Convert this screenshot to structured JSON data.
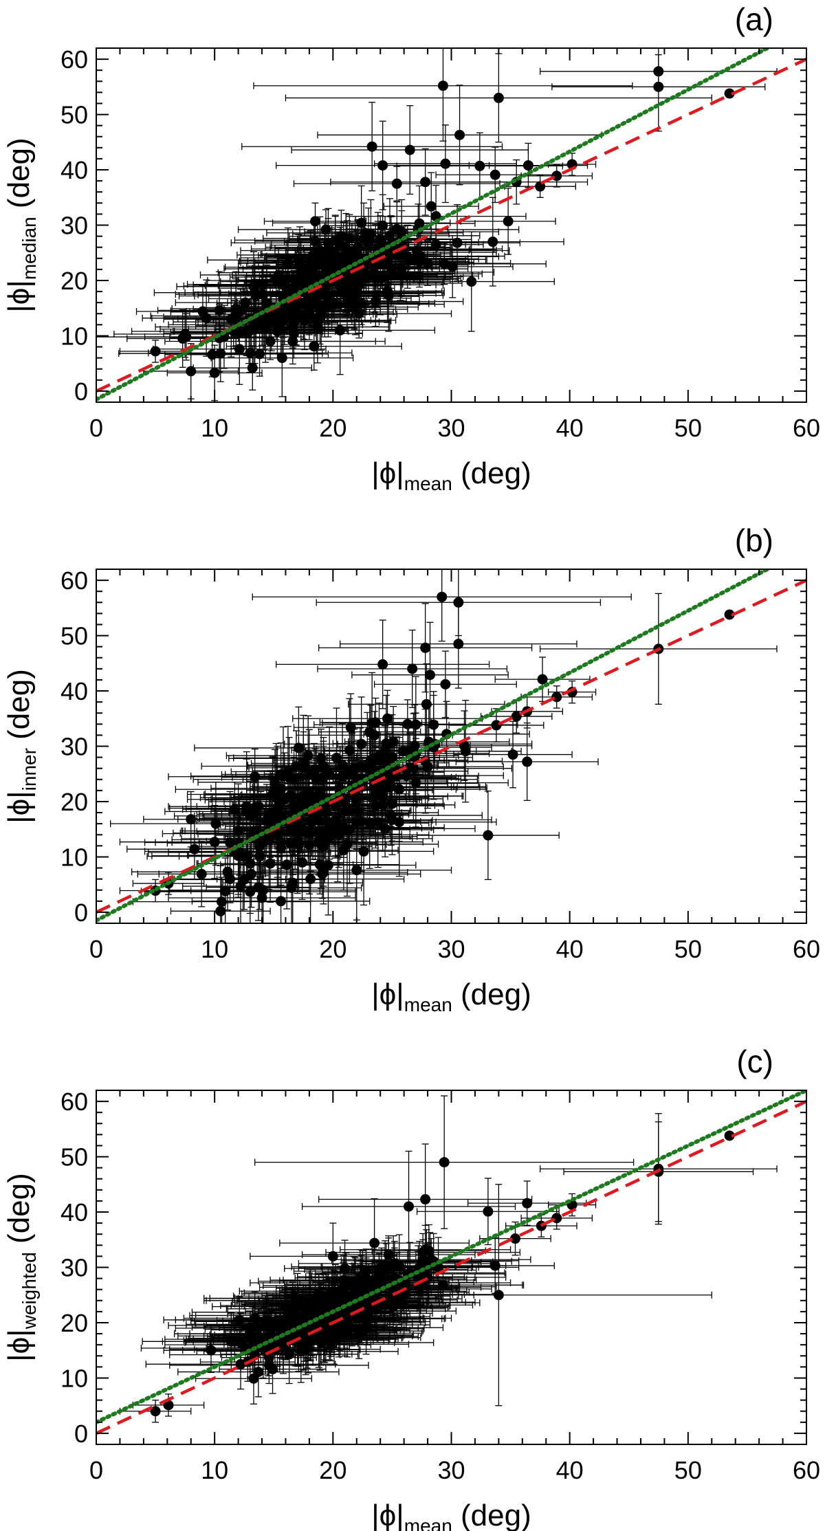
{
  "chart_data": [
    {
      "panel": "(a)",
      "type": "scatter",
      "xlabel": {
        "symbol": "|ϕ|",
        "sub": "mean",
        "unit": "(deg)"
      },
      "ylabel": {
        "symbol": "|ϕ|",
        "sub": "median",
        "unit": "(deg)"
      },
      "xlim": [
        0,
        60
      ],
      "ylim": [
        -2,
        62
      ],
      "xticks": [
        0,
        10,
        20,
        30,
        40,
        50,
        60
      ],
      "yticks": [
        0,
        10,
        20,
        30,
        40,
        50,
        60
      ],
      "lines": [
        {
          "name": "one-to-one",
          "style": "dashed",
          "color": "#e0191e",
          "slope": 1.0,
          "intercept": 0
        },
        {
          "name": "fit",
          "style": "dotted",
          "color": "#1e7a1e",
          "slope": 1.12,
          "intercept": -1.5
        }
      ],
      "points": [
        {
          "x": 47.5,
          "y": 57.8,
          "xerr": 10,
          "yerr": 3
        },
        {
          "x": 47.5,
          "y": 55.0,
          "xerr": 9,
          "yerr": 8
        },
        {
          "x": 53.5,
          "y": 53.8,
          "xerr": 0,
          "yerr": 0
        },
        {
          "x": 29.3,
          "y": 55.2,
          "xerr": 16,
          "yerr": 10
        },
        {
          "x": 34.0,
          "y": 53.0,
          "xerr": 18,
          "yerr": 8
        },
        {
          "x": 30.7,
          "y": 46.3,
          "xerr": 12,
          "yerr": 9
        },
        {
          "x": 23.3,
          "y": 44.2,
          "xerr": 11,
          "yerr": 8
        },
        {
          "x": 26.5,
          "y": 43.6,
          "xerr": 10,
          "yerr": 8
        },
        {
          "x": 40.2,
          "y": 41.0,
          "xerr": 2,
          "yerr": 2
        },
        {
          "x": 38.9,
          "y": 38.9,
          "xerr": 3,
          "yerr": 2
        },
        {
          "x": 37.5,
          "y": 37.0,
          "xerr": 3,
          "yerr": 2
        },
        {
          "x": 36.5,
          "y": 40.8,
          "xerr": 5,
          "yerr": 4
        },
        {
          "x": 32.4,
          "y": 40.7,
          "xerr": 7,
          "yerr": 6
        },
        {
          "x": 29.5,
          "y": 41.1,
          "xerr": 6,
          "yerr": 7
        },
        {
          "x": 27.8,
          "y": 37.8,
          "xerr": 8,
          "yerr": 6
        },
        {
          "x": 24.2,
          "y": 40.8,
          "xerr": 9,
          "yerr": 8
        },
        {
          "x": 33.7,
          "y": 39.1,
          "xerr": 5,
          "yerr": 5
        },
        {
          "x": 35.5,
          "y": 37.8,
          "xerr": 6,
          "yerr": 4
        },
        {
          "x": 34.8,
          "y": 30.7,
          "xerr": 4,
          "yerr": 6
        },
        {
          "x": 33.5,
          "y": 27.0,
          "xerr": 6,
          "yerr": 8
        },
        {
          "x": 31.7,
          "y": 19.8,
          "xerr": 7,
          "yerr": 9
        },
        {
          "x": 5.0,
          "y": 7.2,
          "xerr": 3,
          "yerr": 2
        },
        {
          "x": 8.0,
          "y": 3.6,
          "xerr": 4,
          "yerr": 5
        },
        {
          "x": 10.0,
          "y": 3.3,
          "xerr": 4,
          "yerr": 5
        },
        {
          "x": 13.2,
          "y": 4.2,
          "xerr": 5,
          "yerr": 4
        },
        {
          "x": 15.7,
          "y": 6.0,
          "xerr": 6,
          "yerr": 7
        },
        {
          "x": 20.6,
          "y": 11.0,
          "xerr": 8,
          "yerr": 8
        },
        {
          "x": 9.8,
          "y": 6.6,
          "xerr": 4,
          "yerr": 4
        }
      ],
      "cloud": {
        "x_range": [
          6,
          33
        ],
        "slope": 1.0,
        "intercept": 0.5,
        "scatter": 6,
        "count": 260,
        "xerr": [
          4,
          9
        ],
        "yerr": [
          3,
          7
        ]
      }
    },
    {
      "panel": "(b)",
      "type": "scatter",
      "xlabel": {
        "symbol": "|ϕ|",
        "sub": "mean",
        "unit": "(deg)"
      },
      "ylabel": {
        "symbol": "|ϕ|",
        "sub": "inner",
        "unit": "(deg)"
      },
      "xlim": [
        0,
        60
      ],
      "ylim": [
        -2,
        62
      ],
      "xticks": [
        0,
        10,
        20,
        30,
        40,
        50,
        60
      ],
      "yticks": [
        0,
        10,
        20,
        30,
        40,
        50,
        60
      ],
      "lines": [
        {
          "name": "one-to-one",
          "style": "dashed",
          "color": "#e0191e",
          "slope": 1.0,
          "intercept": 0
        },
        {
          "name": "fit",
          "style": "dotted",
          "color": "#1e7a1e",
          "slope": 1.12,
          "intercept": -1.5
        }
      ],
      "points": [
        {
          "x": 47.5,
          "y": 47.6,
          "xerr": 10,
          "yerr": 10
        },
        {
          "x": 53.5,
          "y": 53.8,
          "xerr": 0,
          "yerr": 0
        },
        {
          "x": 29.2,
          "y": 57.0,
          "xerr": 16,
          "yerr": 8
        },
        {
          "x": 30.6,
          "y": 56.0,
          "xerr": 12,
          "yerr": 6
        },
        {
          "x": 30.6,
          "y": 48.5,
          "xerr": 10,
          "yerr": 8
        },
        {
          "x": 27.8,
          "y": 47.8,
          "xerr": 9,
          "yerr": 8
        },
        {
          "x": 24.2,
          "y": 44.8,
          "xerr": 9,
          "yerr": 8
        },
        {
          "x": 26.7,
          "y": 44.0,
          "xerr": 8,
          "yerr": 7
        },
        {
          "x": 29.5,
          "y": 41.2,
          "xerr": 6,
          "yerr": 6
        },
        {
          "x": 37.7,
          "y": 42.1,
          "xerr": 4,
          "yerr": 4
        },
        {
          "x": 40.2,
          "y": 39.8,
          "xerr": 2,
          "yerr": 2
        },
        {
          "x": 38.9,
          "y": 38.9,
          "xerr": 3,
          "yerr": 2
        },
        {
          "x": 36.4,
          "y": 36.3,
          "xerr": 3,
          "yerr": 3
        },
        {
          "x": 35.5,
          "y": 35.4,
          "xerr": 3,
          "yerr": 3
        },
        {
          "x": 33.8,
          "y": 33.8,
          "xerr": 4,
          "yerr": 3
        },
        {
          "x": 35.2,
          "y": 28.5,
          "xerr": 5,
          "yerr": 6
        },
        {
          "x": 36.4,
          "y": 27.2,
          "xerr": 6,
          "yerr": 7
        },
        {
          "x": 33.1,
          "y": 13.9,
          "xerr": 6,
          "yerr": 8
        },
        {
          "x": 5.0,
          "y": 3.9,
          "xerr": 3,
          "yerr": 2
        },
        {
          "x": 6.1,
          "y": 5.2,
          "xerr": 3,
          "yerr": 2
        },
        {
          "x": 8.0,
          "y": 16.8,
          "xerr": 4,
          "yerr": 5
        },
        {
          "x": 22.0,
          "y": 7.6,
          "xerr": 8,
          "yerr": 9
        }
      ],
      "cloud": {
        "x_range": [
          6,
          33
        ],
        "slope": 1.0,
        "intercept": 0.5,
        "scatter": 8,
        "count": 260,
        "xerr": [
          4,
          9
        ],
        "yerr": [
          4,
          10
        ]
      }
    },
    {
      "panel": "(c)",
      "type": "scatter",
      "xlabel": {
        "symbol": "|ϕ|",
        "sub": "mean",
        "unit": "(deg)"
      },
      "ylabel": {
        "symbol": "|ϕ|",
        "sub": "weighted",
        "unit": "(deg)"
      },
      "xlim": [
        0,
        60
      ],
      "ylim": [
        -2,
        62
      ],
      "xticks": [
        0,
        10,
        20,
        30,
        40,
        50,
        60
      ],
      "yticks": [
        0,
        10,
        20,
        30,
        40,
        50,
        60
      ],
      "lines": [
        {
          "name": "one-to-one",
          "style": "dashed",
          "color": "#e0191e",
          "slope": 1.0,
          "intercept": 0
        },
        {
          "name": "fit",
          "style": "dotted",
          "color": "#1e7a1e",
          "slope": 1.0,
          "intercept": 2.0
        }
      ],
      "points": [
        {
          "x": 47.5,
          "y": 47.8,
          "xerr": 10,
          "yerr": 10
        },
        {
          "x": 47.5,
          "y": 47.3,
          "xerr": 8,
          "yerr": 9
        },
        {
          "x": 53.5,
          "y": 53.8,
          "xerr": 0,
          "yerr": 0
        },
        {
          "x": 29.4,
          "y": 49.0,
          "xerr": 16,
          "yerr": 12
        },
        {
          "x": 27.8,
          "y": 42.3,
          "xerr": 9,
          "yerr": 10
        },
        {
          "x": 26.4,
          "y": 41.0,
          "xerr": 9,
          "yerr": 10
        },
        {
          "x": 36.4,
          "y": 41.6,
          "xerr": 5,
          "yerr": 4
        },
        {
          "x": 40.2,
          "y": 41.3,
          "xerr": 2,
          "yerr": 2
        },
        {
          "x": 38.9,
          "y": 38.9,
          "xerr": 3,
          "yerr": 2
        },
        {
          "x": 37.6,
          "y": 37.5,
          "xerr": 3,
          "yerr": 2
        },
        {
          "x": 33.1,
          "y": 40.1,
          "xerr": 6,
          "yerr": 6
        },
        {
          "x": 34.0,
          "y": 25.0,
          "xerr": 18,
          "yerr": 20
        },
        {
          "x": 33.7,
          "y": 30.3,
          "xerr": 5,
          "yerr": 5
        },
        {
          "x": 35.4,
          "y": 35.2,
          "xerr": 3,
          "yerr": 3
        },
        {
          "x": 5.0,
          "y": 4.0,
          "xerr": 3,
          "yerr": 2
        },
        {
          "x": 6.1,
          "y": 5.1,
          "xerr": 3,
          "yerr": 2
        },
        {
          "x": 23.5,
          "y": 34.4,
          "xerr": 8,
          "yerr": 8
        },
        {
          "x": 9.7,
          "y": 15.0,
          "xerr": 4,
          "yerr": 4
        },
        {
          "x": 20.0,
          "y": 32.0,
          "xerr": 7,
          "yerr": 6
        }
      ],
      "cloud": {
        "x_range": [
          8,
          32
        ],
        "slope": 1.0,
        "intercept": 2.0,
        "scatter": 3.5,
        "count": 280,
        "xerr": [
          4,
          9
        ],
        "yerr": [
          3,
          6
        ]
      }
    }
  ]
}
